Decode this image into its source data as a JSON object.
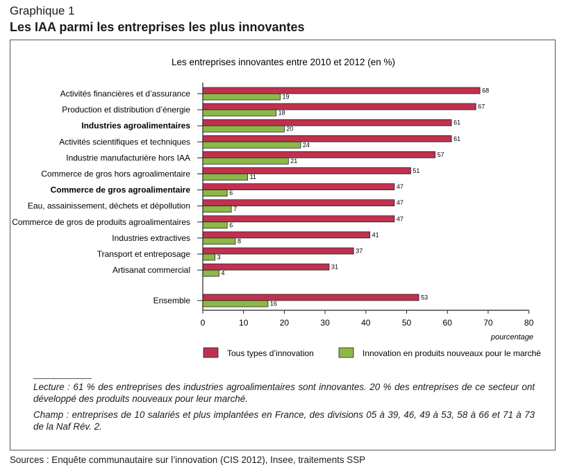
{
  "header": {
    "kicker": "Graphique 1",
    "title": "Les IAA parmi les entreprises les plus innovantes"
  },
  "colors": {
    "series_all": "#c0314f",
    "series_new": "#8db848",
    "axis": "#222222"
  },
  "chart_data": {
    "type": "bar",
    "orientation": "horizontal",
    "title": "Les entreprises innovantes entre 2010 et 2012 (en %)",
    "xlabel": "pourcentage",
    "ylabel": "",
    "xlim": [
      0,
      80
    ],
    "xticks": [
      0,
      10,
      20,
      30,
      40,
      50,
      60,
      70,
      80
    ],
    "grid": false,
    "legend_position": "bottom",
    "categories": [
      "Activités financières et d’assurance",
      "Production et distribution d’énergie",
      "Industries agroalimentaires",
      "Activités scientifiques et techniques",
      "Industrie manufacturière hors IAA",
      "Commerce de gros hors agroalimentaire",
      "Commerce de gros agroalimentaire",
      "Eau, assainissement, déchets et dépollution",
      "Commerce de gros de produits agroalimentaires",
      "Industries extractives",
      "Transport et entreposage",
      "Artisanat commercial",
      "Ensemble"
    ],
    "bold_categories": [
      "Industries agroalimentaires",
      "Commerce de gros agroalimentaire"
    ],
    "series": [
      {
        "name": "Tous types d’innovation",
        "values": [
          68,
          67,
          61,
          61,
          57,
          51,
          47,
          47,
          47,
          41,
          37,
          31,
          53
        ]
      },
      {
        "name": "Innovation en produits nouveaux pour le marché",
        "values": [
          19,
          18,
          20,
          24,
          21,
          11,
          6,
          7,
          6,
          8,
          3,
          4,
          16
        ]
      }
    ]
  },
  "notes": {
    "lecture": "Lecture : 61 % des entreprises des industries agroalimentaires sont innovantes. 20 % des entreprises de ce secteur ont développé des produits nouveaux pour leur marché.",
    "champ": "Champ : entreprises de 10 salariés et plus implantées en France, des divisions 05 à 39, 46, 49 à 53, 58 à 66 et 71 à 73 de la Naf Rév. 2."
  },
  "source": "Sources : Enquête communautaire sur l’innovation (CIS 2012), Insee, traitements SSP"
}
